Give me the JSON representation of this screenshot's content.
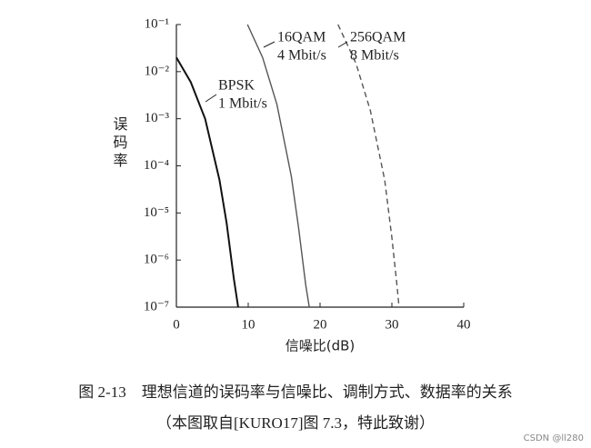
{
  "chart_data": {
    "type": "line",
    "xlabel": "信噪比(dB)",
    "ylabel": "误码率",
    "caption": "图 2-13　理想信道的误码率与信噪比、调制方式、数据率的关系",
    "subcaption": "（本图取自[KURO17]图 7.3，特此致谢）",
    "watermark": "CSDN @ll280",
    "log_y": true,
    "xlim": [
      0,
      40
    ],
    "xticks": [
      0,
      10,
      20,
      30,
      40
    ],
    "ylim": [
      1e-07,
      0.1
    ],
    "yticks": [
      {
        "value": 0.1,
        "label": "10⁻¹"
      },
      {
        "value": 0.01,
        "label": "10⁻²"
      },
      {
        "value": 0.001,
        "label": "10⁻³"
      },
      {
        "value": 0.0001,
        "label": "10⁻⁴"
      },
      {
        "value": 1e-05,
        "label": "10⁻⁵"
      },
      {
        "value": 1e-06,
        "label": "10⁻⁶"
      },
      {
        "value": 1e-07,
        "label": "10⁻⁷"
      }
    ],
    "series": [
      {
        "name": "BPSK",
        "rate": "1 Mbit/s",
        "color": "#111111",
        "dashed": false,
        "x": [
          0,
          2,
          4,
          6,
          7,
          8,
          8.6
        ],
        "values": [
          0.02,
          0.006,
          0.001,
          5e-05,
          6e-06,
          4e-07,
          1e-07
        ]
      },
      {
        "name": "16QAM",
        "rate": "4 Mbit/s",
        "color": "#555555",
        "dashed": false,
        "x": [
          9.9,
          12,
          14,
          16,
          17,
          18,
          18.5
        ],
        "values": [
          0.1,
          0.02,
          0.002,
          6e-05,
          5e-06,
          3e-07,
          1e-07
        ]
      },
      {
        "name": "256QAM",
        "rate": "8 Mbit/s",
        "color": "#555555",
        "dashed": true,
        "x": [
          22.5,
          25,
          27,
          29,
          30,
          30.7,
          31
        ],
        "values": [
          0.1,
          0.015,
          0.0015,
          5e-05,
          3e-06,
          3e-07,
          1e-07
        ]
      }
    ]
  }
}
